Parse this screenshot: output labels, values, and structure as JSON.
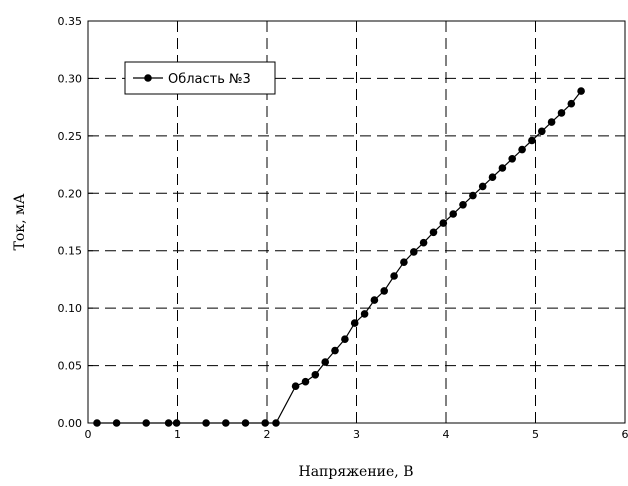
{
  "chart_data": {
    "type": "line",
    "title": "",
    "xlabel": "Напряжение, В",
    "ylabel": "Ток, мА",
    "xlim": [
      0,
      6
    ],
    "ylim": [
      0,
      0.35
    ],
    "x_ticks": [
      "0",
      "1",
      "2",
      "3",
      "4",
      "5",
      "6"
    ],
    "y_ticks": [
      "0.00",
      "0.05",
      "0.10",
      "0.15",
      "0.20",
      "0.25",
      "0.30",
      "0.35"
    ],
    "grid": true,
    "legend_position": "top-left",
    "series": [
      {
        "name": "Область №3",
        "color": "#000000",
        "marker": "circle",
        "x": [
          0.1,
          0.32,
          0.65,
          0.9,
          0.99,
          1.32,
          1.54,
          1.76,
          1.98,
          2.1,
          2.32,
          2.43,
          2.54,
          2.65,
          2.76,
          2.87,
          2.98,
          3.09,
          3.2,
          3.31,
          3.42,
          3.53,
          3.64,
          3.75,
          3.86,
          3.97,
          4.08,
          4.19,
          4.3,
          4.41,
          4.52,
          4.63,
          4.74,
          4.85,
          4.96,
          5.07,
          5.18,
          5.29,
          5.4,
          5.51
        ],
        "y": [
          0.0,
          0.0,
          0.0,
          0.0,
          0.0,
          0.0,
          0.0,
          0.0,
          0.0,
          0.0,
          0.032,
          0.036,
          0.042,
          0.053,
          0.063,
          0.073,
          0.087,
          0.095,
          0.107,
          0.115,
          0.128,
          0.14,
          0.149,
          0.157,
          0.166,
          0.174,
          0.182,
          0.19,
          0.198,
          0.206,
          0.214,
          0.222,
          0.23,
          0.238,
          0.246,
          0.254,
          0.262,
          0.27,
          0.278,
          0.289
        ]
      }
    ]
  }
}
